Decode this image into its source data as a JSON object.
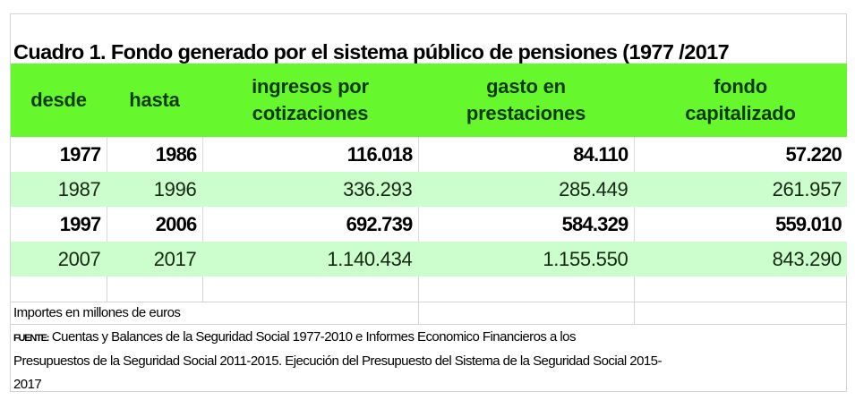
{
  "document": {
    "title": "Cuadro 1. Fondo generado por el sistema público de pensiones (1977 /2017",
    "colors": {
      "header_bg": "#66f82c",
      "header_text": "#0b3a05",
      "alt_row_bg": "#ccfdcc",
      "border": "#d4d4d4"
    },
    "table": {
      "headers": [
        {
          "line1": "desde",
          "line2": ""
        },
        {
          "line1": "hasta",
          "line2": ""
        },
        {
          "line1": "ingresos por",
          "line2": "cotizaciones"
        },
        {
          "line1": "gasto en",
          "line2": "prestaciones"
        },
        {
          "line1": "fondo",
          "line2": "capitalizado"
        }
      ],
      "rows": [
        {
          "desde": "1977",
          "hasta": "1986",
          "ingresos": "116.018",
          "gasto": "84.110",
          "fondo": "57.220"
        },
        {
          "desde": "1987",
          "hasta": "1996",
          "ingresos": "336.293",
          "gasto": "285.449",
          "fondo": "261.957"
        },
        {
          "desde": "1997",
          "hasta": "2006",
          "ingresos": "692.739",
          "gasto": "584.329",
          "fondo": "559.010"
        },
        {
          "desde": "2007",
          "hasta": "2017",
          "ingresos": "1.140.434",
          "gasto": "1.155.550",
          "fondo": "843.290"
        }
      ]
    },
    "note": "Importes en  millones de euros",
    "source": {
      "label": "FUENTE:",
      "line1": " Cuentas y Balances de la Seguridad Social 1977-2010 e Informes Economico Financieros a los",
      "line2": "Presupuestos de la Seguridad Social 2011-2015. Ejecución del Presupuesto del Sistema de la Seguridad Social 2015-",
      "line3": "2017"
    }
  }
}
